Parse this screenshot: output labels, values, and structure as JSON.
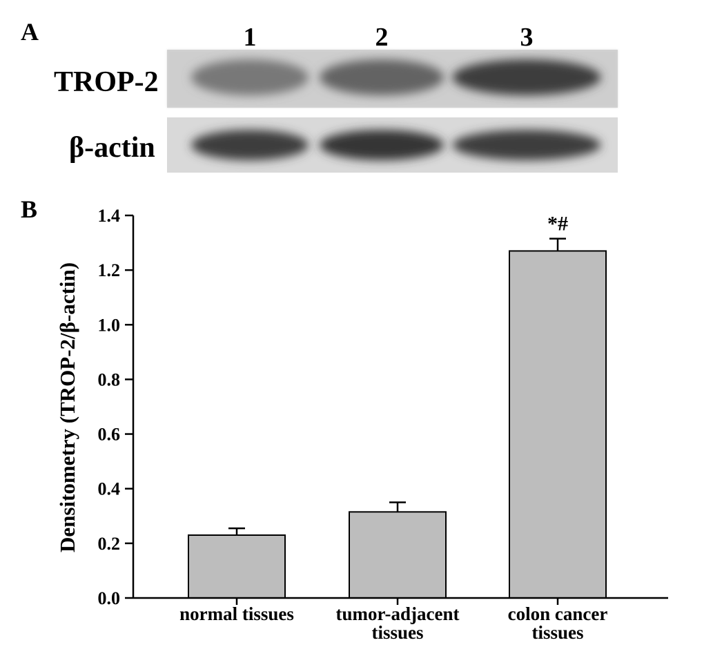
{
  "panel_a": {
    "letter": "A",
    "lanes": [
      "1",
      "2",
      "3"
    ],
    "rows": [
      {
        "label": "TROP-2",
        "intensity": [
          0.55,
          0.65,
          0.85
        ]
      },
      {
        "label": "β-actin",
        "intensity": [
          0.85,
          0.88,
          0.85
        ]
      }
    ]
  },
  "panel_b": {
    "letter": "B"
  },
  "chart_data": {
    "type": "bar",
    "title": "",
    "ylabel": "Densitometry (TROP-2/β-actin)",
    "xlabel": "",
    "categories": [
      [
        "normal tissues"
      ],
      [
        "tumor-adjacent",
        "tissues"
      ],
      [
        "colon cancer",
        "tissues"
      ]
    ],
    "values": [
      0.23,
      0.315,
      1.27
    ],
    "errors": [
      0.025,
      0.035,
      0.045
    ],
    "annotations": [
      "",
      "",
      "*#"
    ],
    "ylim": [
      0.0,
      1.4
    ],
    "yticks": [
      "0.0",
      "0.2",
      "0.4",
      "0.6",
      "0.8",
      "1.0",
      "1.2",
      "1.4"
    ],
    "grid": false,
    "colors": {
      "bar": "#bdbdbd",
      "edge": "#000000"
    }
  }
}
